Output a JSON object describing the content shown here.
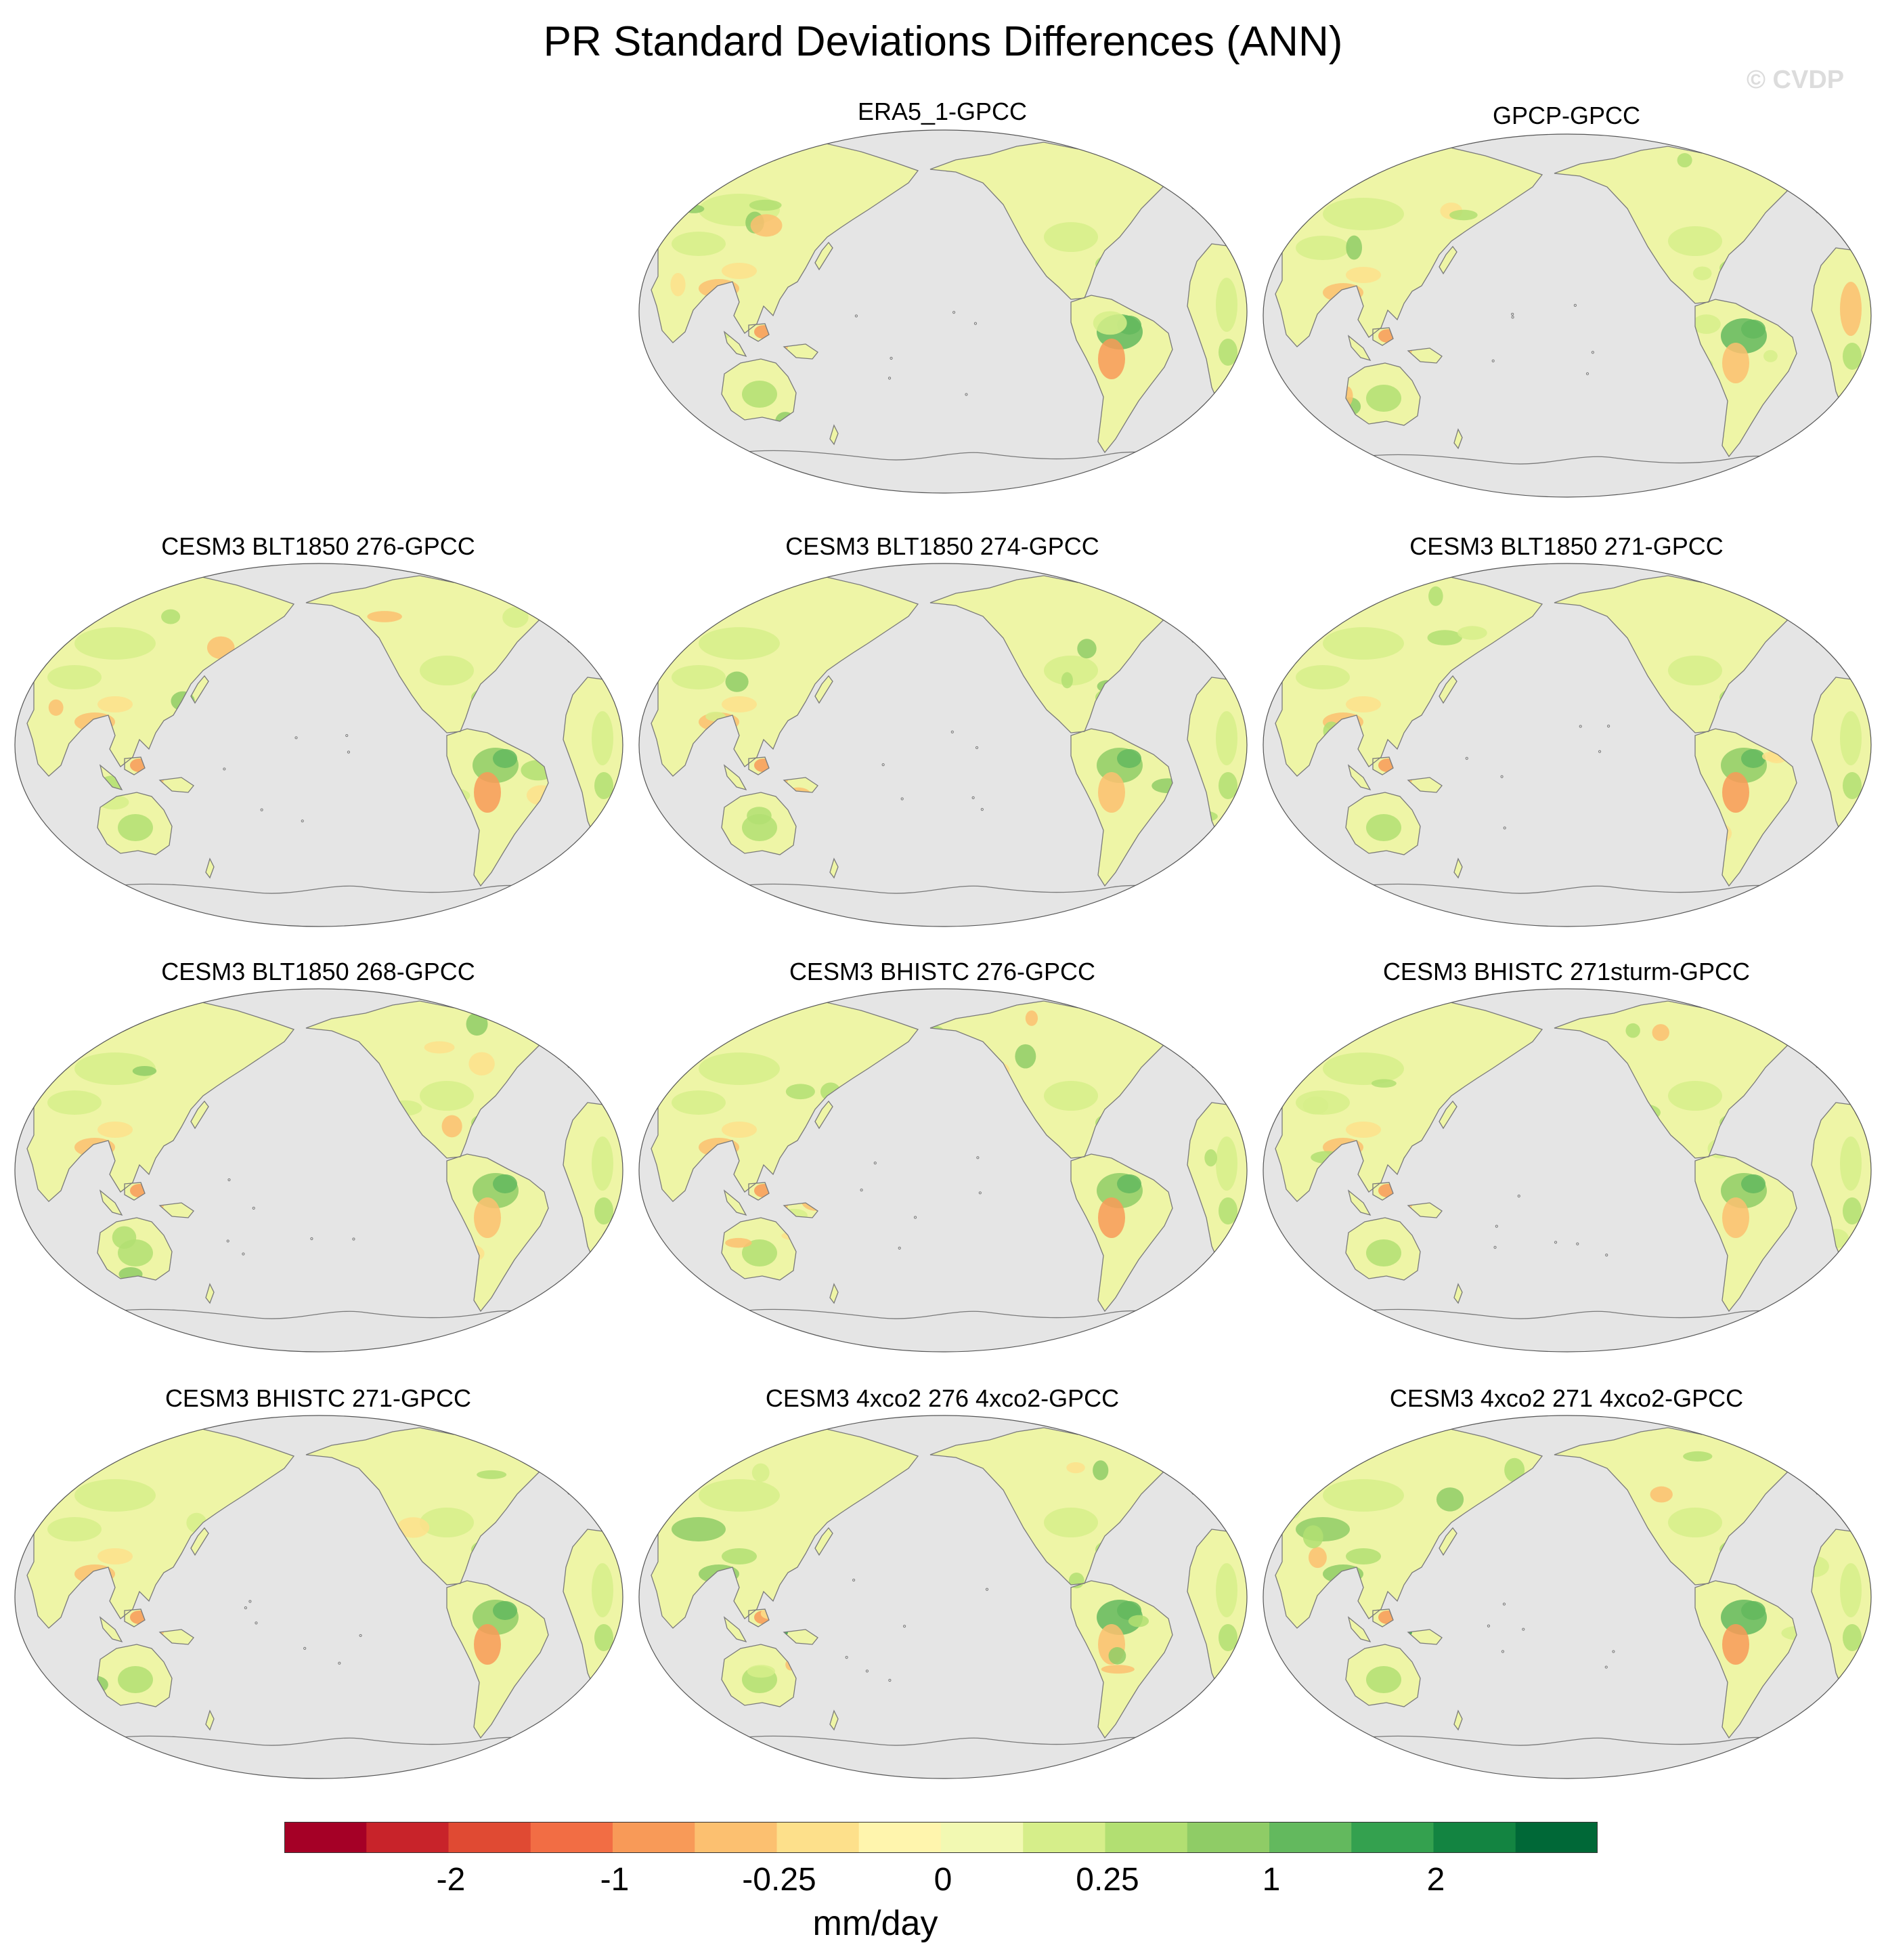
{
  "title": "PR Standard Deviations Differences (ANN)",
  "watermark": "© CVDP",
  "panels": [
    {
      "title": "ERA5_1-GPCC"
    },
    {
      "title": "GPCP-GPCC"
    },
    {
      "title": "CESM3 BLT1850 276-GPCC"
    },
    {
      "title": "CESM3 BLT1850 274-GPCC"
    },
    {
      "title": "CESM3 BLT1850 271-GPCC"
    },
    {
      "title": "CESM3 BLT1850 268-GPCC"
    },
    {
      "title": "CESM3 BHISTC 276-GPCC"
    },
    {
      "title": "CESM3 BHISTC 271sturm-GPCC"
    },
    {
      "title": "CESM3 BHISTC 271-GPCC"
    },
    {
      "title": "CESM3 4xco2 276 4xco2-GPCC"
    },
    {
      "title": "CESM3 4xco2 271 4xco2-GPCC"
    }
  ],
  "colorbar": {
    "units": "mm/day",
    "colors": [
      "#a50026",
      "#c8232a",
      "#e04a33",
      "#f26d44",
      "#f89a58",
      "#fcc070",
      "#fde08b",
      "#fff5ad",
      "#f2f9b2",
      "#d6ee8a",
      "#b2df72",
      "#8fcc66",
      "#63b95e",
      "#34a14f",
      "#138441",
      "#006837"
    ],
    "labels": [
      "-2",
      "-1",
      "-0.25",
      "0",
      "0.25",
      "1",
      "2"
    ]
  },
  "colors": {
    "ocean": "#e5e5e5",
    "land_base": "#eef5a6",
    "coast": "#7a7a7a"
  }
}
